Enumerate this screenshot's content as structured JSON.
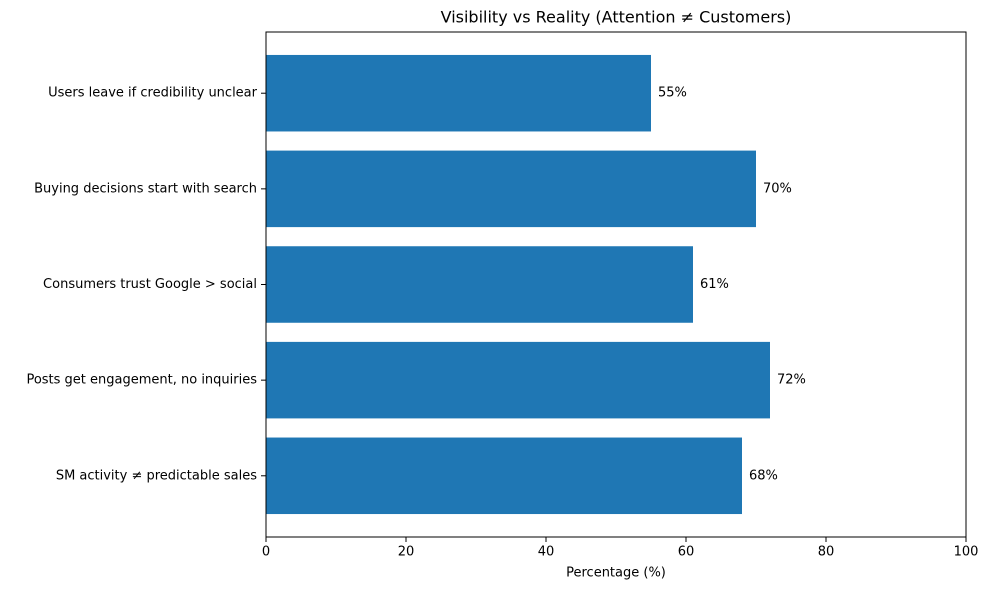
{
  "chart_data": {
    "type": "bar",
    "orientation": "horizontal",
    "title": "Visibility vs Reality (Attention ≠ Customers)",
    "x_label": "Percentage (%)",
    "categories": [
      "Users leave if credibility unclear",
      "Buying decisions start with search",
      "Consumers trust Google > social",
      "Posts get engagement, no inquiries",
      "SM activity ≠ predictable sales"
    ],
    "values": [
      55,
      70,
      61,
      72,
      68
    ],
    "value_labels": [
      "55%",
      "70%",
      "61%",
      "72%",
      "68%"
    ],
    "color": "#1f77b4",
    "xlim": [
      0,
      100
    ],
    "xticks": [
      0,
      20,
      40,
      60,
      80,
      100
    ],
    "grid": false
  }
}
